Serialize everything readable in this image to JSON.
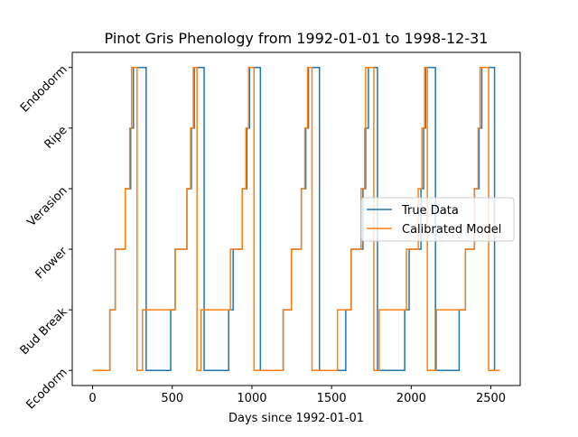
{
  "chart_data": {
    "type": "step",
    "title": "Pinot Gris Phenology from 1992-01-01 to 1998-12-31",
    "x_label": "Days since 1992-01-01",
    "xlim": [
      -128,
      2684
    ],
    "xticks": [
      0,
      500,
      1000,
      1500,
      2000,
      2500
    ],
    "ylim": [
      -0.25,
      5.25
    ],
    "yticks": [
      {
        "value": 0,
        "label": "Ecodorm"
      },
      {
        "value": 1,
        "label": "Bud Break"
      },
      {
        "value": 2,
        "label": "Flower"
      },
      {
        "value": 3,
        "label": "Verasion"
      },
      {
        "value": 4,
        "label": "Ripe"
      },
      {
        "value": 5,
        "label": "Endodorm"
      }
    ],
    "legend": "center right",
    "series": [
      {
        "name": "True Data",
        "color": "#1f77b4",
        "x": [
          0,
          108,
          142,
          205,
          239,
          256,
          336,
          490,
          518,
          592,
          620,
          638,
          700,
          854,
          882,
          939,
          968,
          985,
          1053,
          1196,
          1248,
          1310,
          1338,
          1355,
          1424,
          1589,
          1623,
          1697,
          1714,
          1731,
          1788,
          1959,
          1987,
          2061,
          2078,
          2090,
          2152,
          2301,
          2340,
          2397,
          2426,
          2443,
          2523,
          2556
        ],
        "values": [
          0,
          1,
          2,
          3,
          4,
          5,
          0,
          1,
          2,
          3,
          4,
          5,
          0,
          1,
          2,
          3,
          4,
          5,
          0,
          1,
          2,
          3,
          4,
          5,
          0,
          1,
          2,
          3,
          4,
          5,
          0,
          1,
          2,
          3,
          4,
          5,
          0,
          1,
          2,
          3,
          4,
          5,
          0,
          0
        ]
      },
      {
        "name": "Calibrated Model",
        "color": "#ff7f0e",
        "x": [
          0,
          108,
          142,
          205,
          233,
          245,
          279,
          313,
          518,
          592,
          615,
          632,
          655,
          680,
          865,
          939,
          962,
          979,
          1013,
          1196,
          1248,
          1310,
          1332,
          1349,
          1377,
          1537,
          1623,
          1685,
          1708,
          1714,
          1765,
          1799,
          1970,
          2044,
          2067,
          2084,
          2101,
          2158,
          2340,
          2397,
          2420,
          2432,
          2486,
          2556
        ],
        "values": [
          0,
          1,
          2,
          3,
          4,
          5,
          0,
          1,
          2,
          3,
          4,
          5,
          0,
          1,
          2,
          3,
          4,
          5,
          0,
          1,
          2,
          3,
          4,
          5,
          0,
          1,
          2,
          3,
          4,
          5,
          0,
          1,
          2,
          3,
          4,
          5,
          0,
          1,
          2,
          3,
          4,
          5,
          0,
          0
        ]
      }
    ]
  }
}
